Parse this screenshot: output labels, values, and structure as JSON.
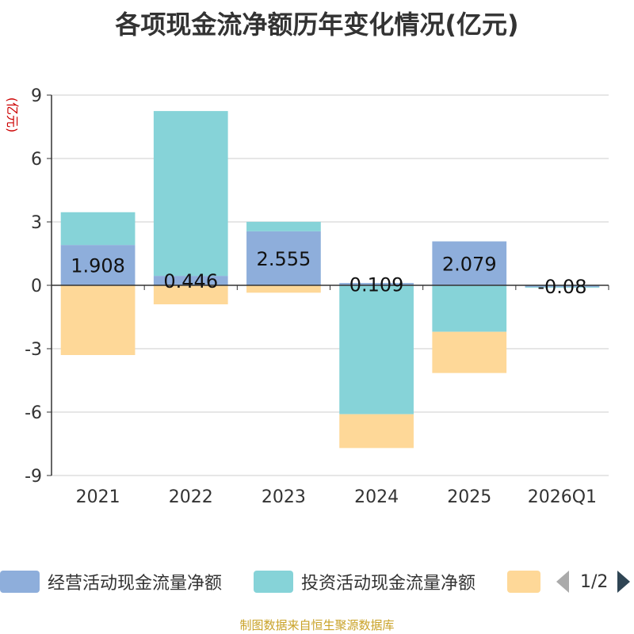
{
  "title": "各项现金流净额历年变化情况(亿元)",
  "footer": "制图数据来自恒生聚源数据库",
  "legend": {
    "items": [
      {
        "label": "经营活动现金流量净额",
        "color": "#8eaedb"
      },
      {
        "label": "投资活动现金流量净额",
        "color": "#86d3d8"
      },
      {
        "label": "",
        "color": "#fed898"
      }
    ],
    "pager": "1/2"
  },
  "chart_data": {
    "type": "bar",
    "stacked": true,
    "title": "各项现金流净额历年变化情况(亿元)",
    "ylabel": "(亿元)",
    "ylim": [
      -9,
      9
    ],
    "yticks": [
      9,
      6,
      3,
      0,
      -3,
      -6,
      -9
    ],
    "categories": [
      "2021",
      "2022",
      "2023",
      "2024",
      "2025",
      "2026Q1"
    ],
    "series": [
      {
        "name": "经营活动现金流量净额",
        "color": "#8eaedb",
        "values": [
          1.908,
          0.446,
          2.555,
          0.109,
          2.079,
          -0.08
        ]
      },
      {
        "name": "投资活动现金流量净额",
        "color": "#86d3d8",
        "values": [
          1.55,
          7.8,
          0.45,
          -6.1,
          -2.2,
          -0.02
        ]
      },
      {
        "name": "",
        "color": "#fed898",
        "values": [
          -3.3,
          -0.9,
          -0.35,
          -1.6,
          -1.95,
          0
        ]
      }
    ],
    "data_labels": [
      "1.908",
      "0.446",
      "2.555",
      "0.109",
      "2.079",
      "-0.08"
    ],
    "grid": true
  }
}
